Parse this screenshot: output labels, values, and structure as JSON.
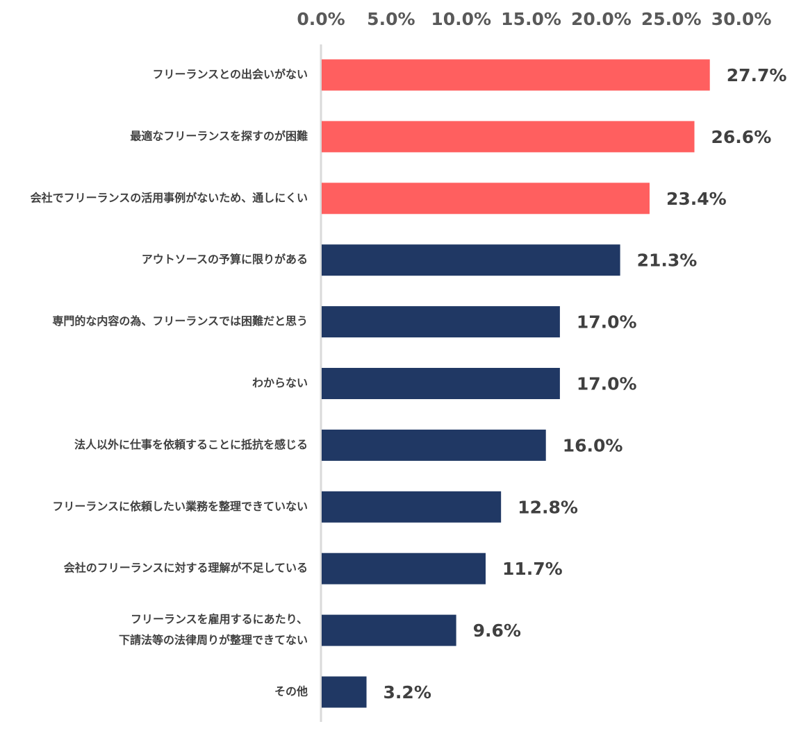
{
  "chart_data": {
    "type": "bar",
    "orientation": "horizontal",
    "title": "",
    "xlabel": "",
    "ylabel": "",
    "xlim": [
      0,
      30
    ],
    "x_ticks": [
      "0.0%",
      "5.0%",
      "10.0%",
      "15.0%",
      "20.0%",
      "25.0%",
      "30.0%"
    ],
    "x_axis_position": "top",
    "grid": false,
    "legend": "none",
    "unit": "%",
    "colors": {
      "highlight": "#ff5f5f",
      "default": "#203864",
      "axis": "#d9d9d9",
      "tick_text": "#595959",
      "label_text": "#404040"
    },
    "categories": [
      [
        "フリーランスとの出会いがない"
      ],
      [
        "最適なフリーランスを探すのが困難"
      ],
      [
        "会社でフリーランスの活用事例がないため、通しにくい"
      ],
      [
        "アウトソースの予算に限りがある"
      ],
      [
        "専門的な内容の為、フリーランスでは困難だと思う"
      ],
      [
        "わからない"
      ],
      [
        "法人以外に仕事を依頼することに抵抗を感じる"
      ],
      [
        "フリーランスに依頼したい業務を整理できていない"
      ],
      [
        "会社のフリーランスに対する理解が不足している"
      ],
      [
        "フリーランスを雇用するにあたり、",
        "下請法等の法律周りが整理できてない"
      ],
      [
        "その他"
      ]
    ],
    "values": [
      27.7,
      26.6,
      23.4,
      21.3,
      17.0,
      17.0,
      16.0,
      12.8,
      11.7,
      9.6,
      3.2
    ],
    "value_labels": [
      "27.7%",
      "26.6%",
      "23.4%",
      "21.3%",
      "17.0%",
      "17.0%",
      "16.0%",
      "12.8%",
      "11.7%",
      "9.6%",
      "3.2%"
    ],
    "highlighted": [
      true,
      true,
      true,
      false,
      false,
      false,
      false,
      false,
      false,
      false,
      false
    ]
  }
}
